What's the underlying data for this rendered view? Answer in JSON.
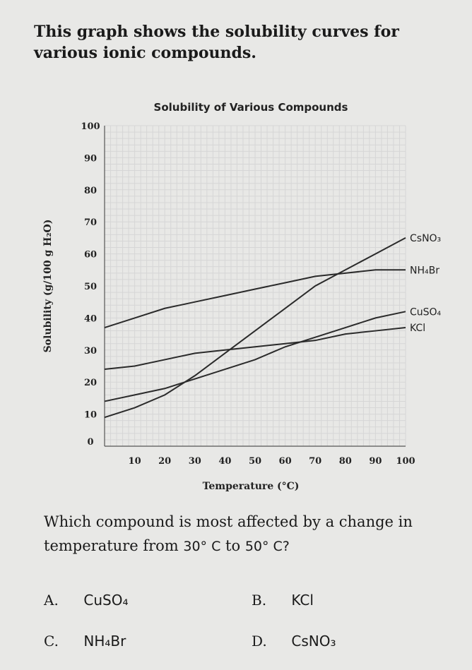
{
  "intro": "This graph shows the solubility curves for various ionic compounds.",
  "question": {
    "text": "Which compound is most affected by a change in",
    "text2": "temperature from",
    "from": "30° C",
    "to_word": "to",
    "to": "50° C?"
  },
  "choices": [
    {
      "letter": "A.",
      "value": "CuSO₄"
    },
    {
      "letter": "B.",
      "value": "KCl"
    },
    {
      "letter": "C.",
      "value": "NH₄Br"
    },
    {
      "letter": "D.",
      "value": "CsNO₃"
    }
  ],
  "chart_data": {
    "type": "line",
    "title": "Solubility of Various Compounds",
    "xlabel": "Temperature (°C)",
    "ylabel": "Solubility (g/100 g H₂O)",
    "xlim": [
      0,
      100
    ],
    "ylim": [
      0,
      100
    ],
    "grid": true,
    "x_ticks": [
      10,
      20,
      30,
      40,
      50,
      60,
      70,
      80,
      90,
      100
    ],
    "y_ticks": [
      0,
      10,
      20,
      30,
      40,
      50,
      60,
      70,
      80,
      90,
      100
    ],
    "series": [
      {
        "name": "CsNO₃",
        "x": [
          0,
          10,
          20,
          30,
          40,
          50,
          60,
          70,
          80,
          90,
          100
        ],
        "y": [
          9,
          12,
          16,
          22,
          29,
          36,
          43,
          50,
          55,
          60,
          65
        ]
      },
      {
        "name": "NH₄Br",
        "x": [
          0,
          10,
          20,
          30,
          40,
          50,
          60,
          70,
          80,
          90,
          100
        ],
        "y": [
          37,
          40,
          43,
          45,
          47,
          49,
          51,
          53,
          54,
          55,
          55
        ]
      },
      {
        "name": "CuSO₄",
        "x": [
          0,
          10,
          20,
          30,
          40,
          50,
          60,
          70,
          80,
          90,
          100
        ],
        "y": [
          14,
          16,
          18,
          21,
          24,
          27,
          31,
          34,
          37,
          40,
          42
        ]
      },
      {
        "name": "KCl",
        "x": [
          0,
          10,
          20,
          30,
          40,
          50,
          60,
          70,
          80,
          90,
          100
        ],
        "y": [
          24,
          25,
          27,
          29,
          30,
          31,
          32,
          33,
          35,
          36,
          37
        ]
      }
    ]
  }
}
